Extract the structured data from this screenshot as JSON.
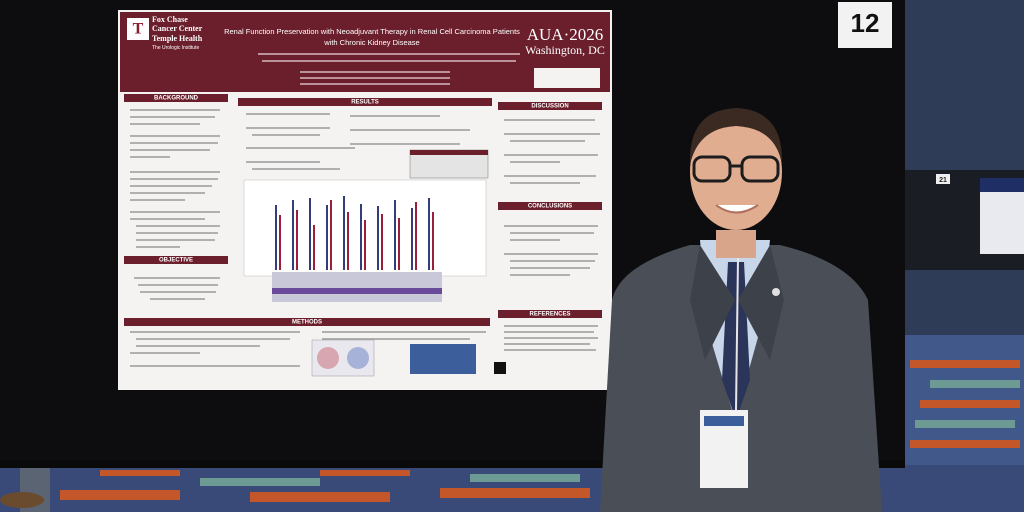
{
  "booth_number": "12",
  "side_booth_number": "21",
  "poster": {
    "institution": [
      "Fox Chase",
      "Cancer Center",
      "Temple Health",
      "The Urologic Institute"
    ],
    "title": [
      "Renal Function Preservation with Neoadjuvant Therapy in Renal Cell Carcinoma Patients",
      "with Chronic Kidney Disease"
    ],
    "meeting": "AUA·2026",
    "location": "Washington, DC",
    "sections": {
      "background": "BACKGROUND",
      "objective": "OBJECTIVE",
      "methods": "METHODS",
      "results": "RESULTS",
      "discussion": "DISCUSSION",
      "conclusions": "CONCLUSIONS",
      "references": "REFERENCES"
    }
  }
}
